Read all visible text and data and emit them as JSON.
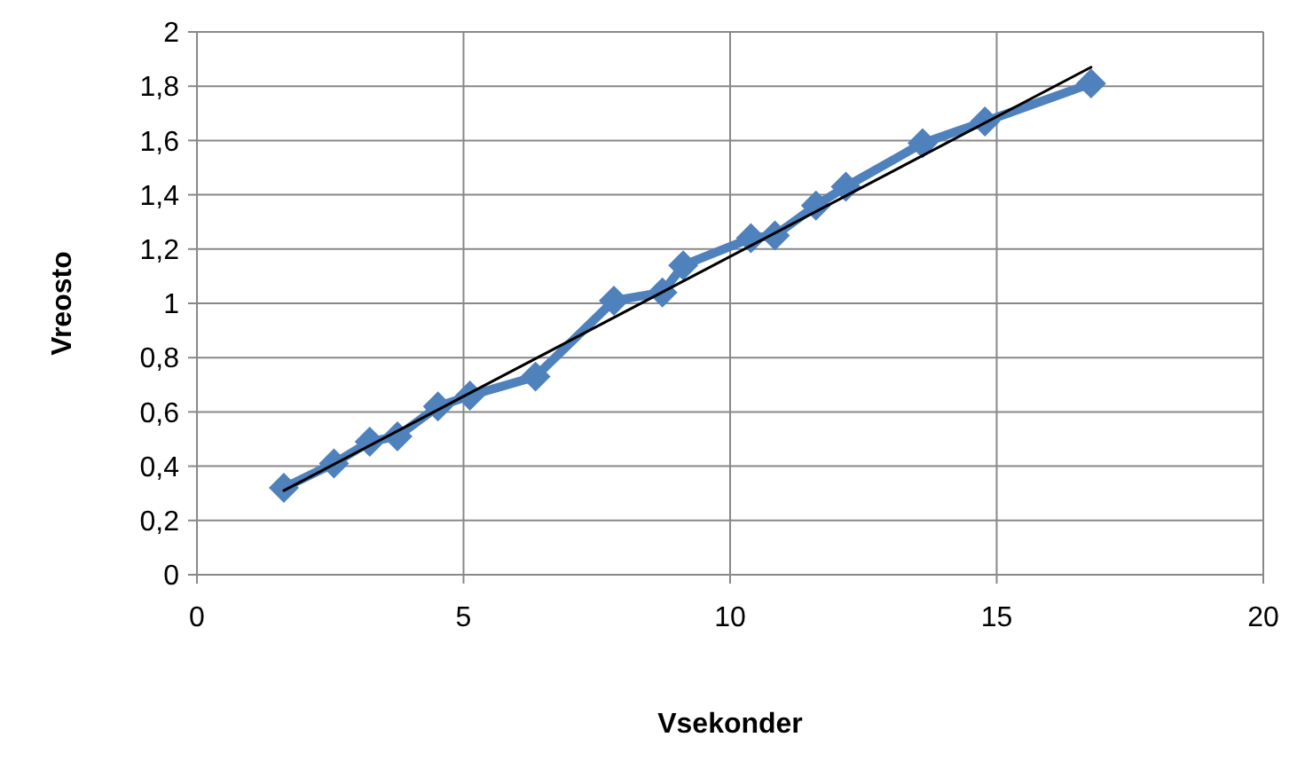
{
  "chart_data": {
    "type": "line",
    "xlabel": "Vsekonder",
    "ylabel": "Vreosto",
    "xlim": [
      0,
      20
    ],
    "ylim": [
      0,
      2
    ],
    "xticks": [
      0,
      5,
      10,
      15,
      20
    ],
    "yticks": [
      0,
      {
        "value": 0.2,
        "label": "0,2"
      },
      {
        "value": 0.4,
        "label": "0,4"
      },
      {
        "value": 0.6,
        "label": "0,6"
      },
      {
        "value": 0.8,
        "label": "0,8"
      },
      1,
      {
        "value": 1.2,
        "label": "1,2"
      },
      {
        "value": 1.4,
        "label": "1,4"
      },
      {
        "value": 1.6,
        "label": "1,6"
      },
      {
        "value": 1.8,
        "label": "1,8"
      },
      2
    ],
    "grid": true,
    "series": [
      {
        "color": "#4f81bd",
        "marker": "diamond",
        "line_style": "solid",
        "x": [
          1.63,
          2.57,
          3.24,
          3.76,
          4.52,
          5.12,
          6.35,
          7.82,
          8.73,
          9.12,
          10.39,
          10.84,
          11.61,
          12.17,
          13.61,
          14.78,
          16.77
        ],
        "values": [
          0.32,
          0.41,
          0.49,
          0.51,
          0.62,
          0.66,
          0.73,
          1.01,
          1.04,
          1.14,
          1.24,
          1.25,
          1.36,
          1.43,
          1.59,
          1.67,
          1.81
        ]
      },
      {
        "color": "#000000",
        "marker": "none",
        "line_style": "solid",
        "x": [
          1.63,
          16.77
        ],
        "values": [
          0.31,
          1.87
        ]
      }
    ]
  }
}
